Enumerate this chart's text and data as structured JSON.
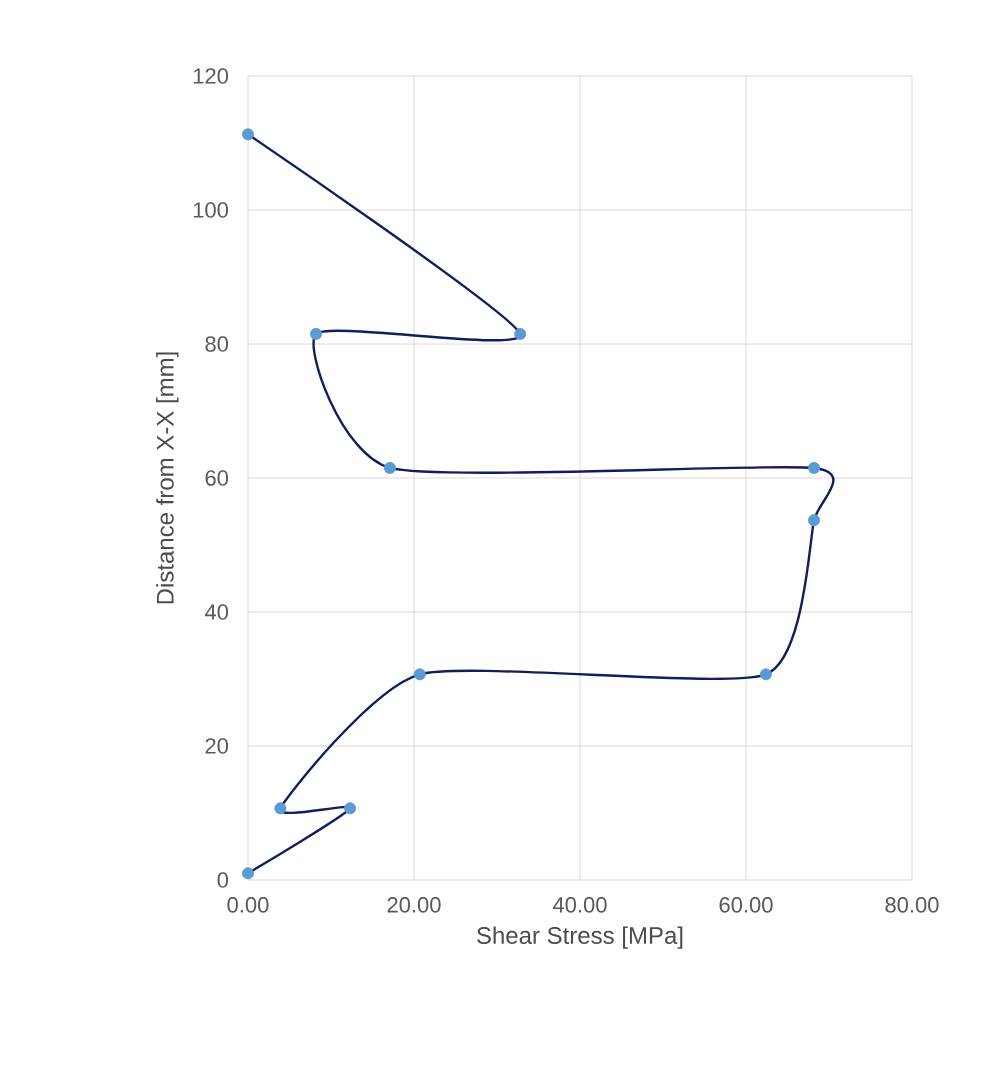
{
  "chart_data": {
    "type": "line",
    "xlabel": "Shear Stress [MPa]",
    "ylabel": "Distance from X-X [mm]",
    "x": [
      0,
      12.3,
      3.9,
      20.7,
      62.4,
      68.2,
      68.2,
      17.1,
      8.2,
      32.8,
      0
    ],
    "series": [
      {
        "color": "#0f1f5c",
        "colors": [
          "#5b9bd5",
          "#5b9bd5",
          "#5b9bd5",
          "#5b9bd5",
          "#5b9bd5",
          "#5b9bd5",
          "#5b9bd5",
          "#5b9bd5",
          "#5b9bd5",
          "#5b9bd5",
          "#5b9bd5"
        ],
        "values": [
          1,
          10.7,
          10.7,
          30.7,
          30.7,
          53.7,
          61.5,
          61.5,
          81.5,
          81.5,
          111.3
        ]
      }
    ],
    "marker": "circle",
    "line_style": "solid",
    "grid": true,
    "xlim": [
      0,
      80
    ],
    "ylim": [
      0,
      120
    ],
    "xticks": [
      {
        "value": 0,
        "label": "0.00"
      },
      {
        "value": 20,
        "label": "20.00"
      },
      {
        "value": 40,
        "label": "40.00"
      },
      {
        "value": 60,
        "label": "60.00"
      },
      {
        "value": 80,
        "label": "80.00"
      }
    ],
    "yticks": [
      0,
      20,
      40,
      60,
      80,
      100,
      120
    ]
  }
}
